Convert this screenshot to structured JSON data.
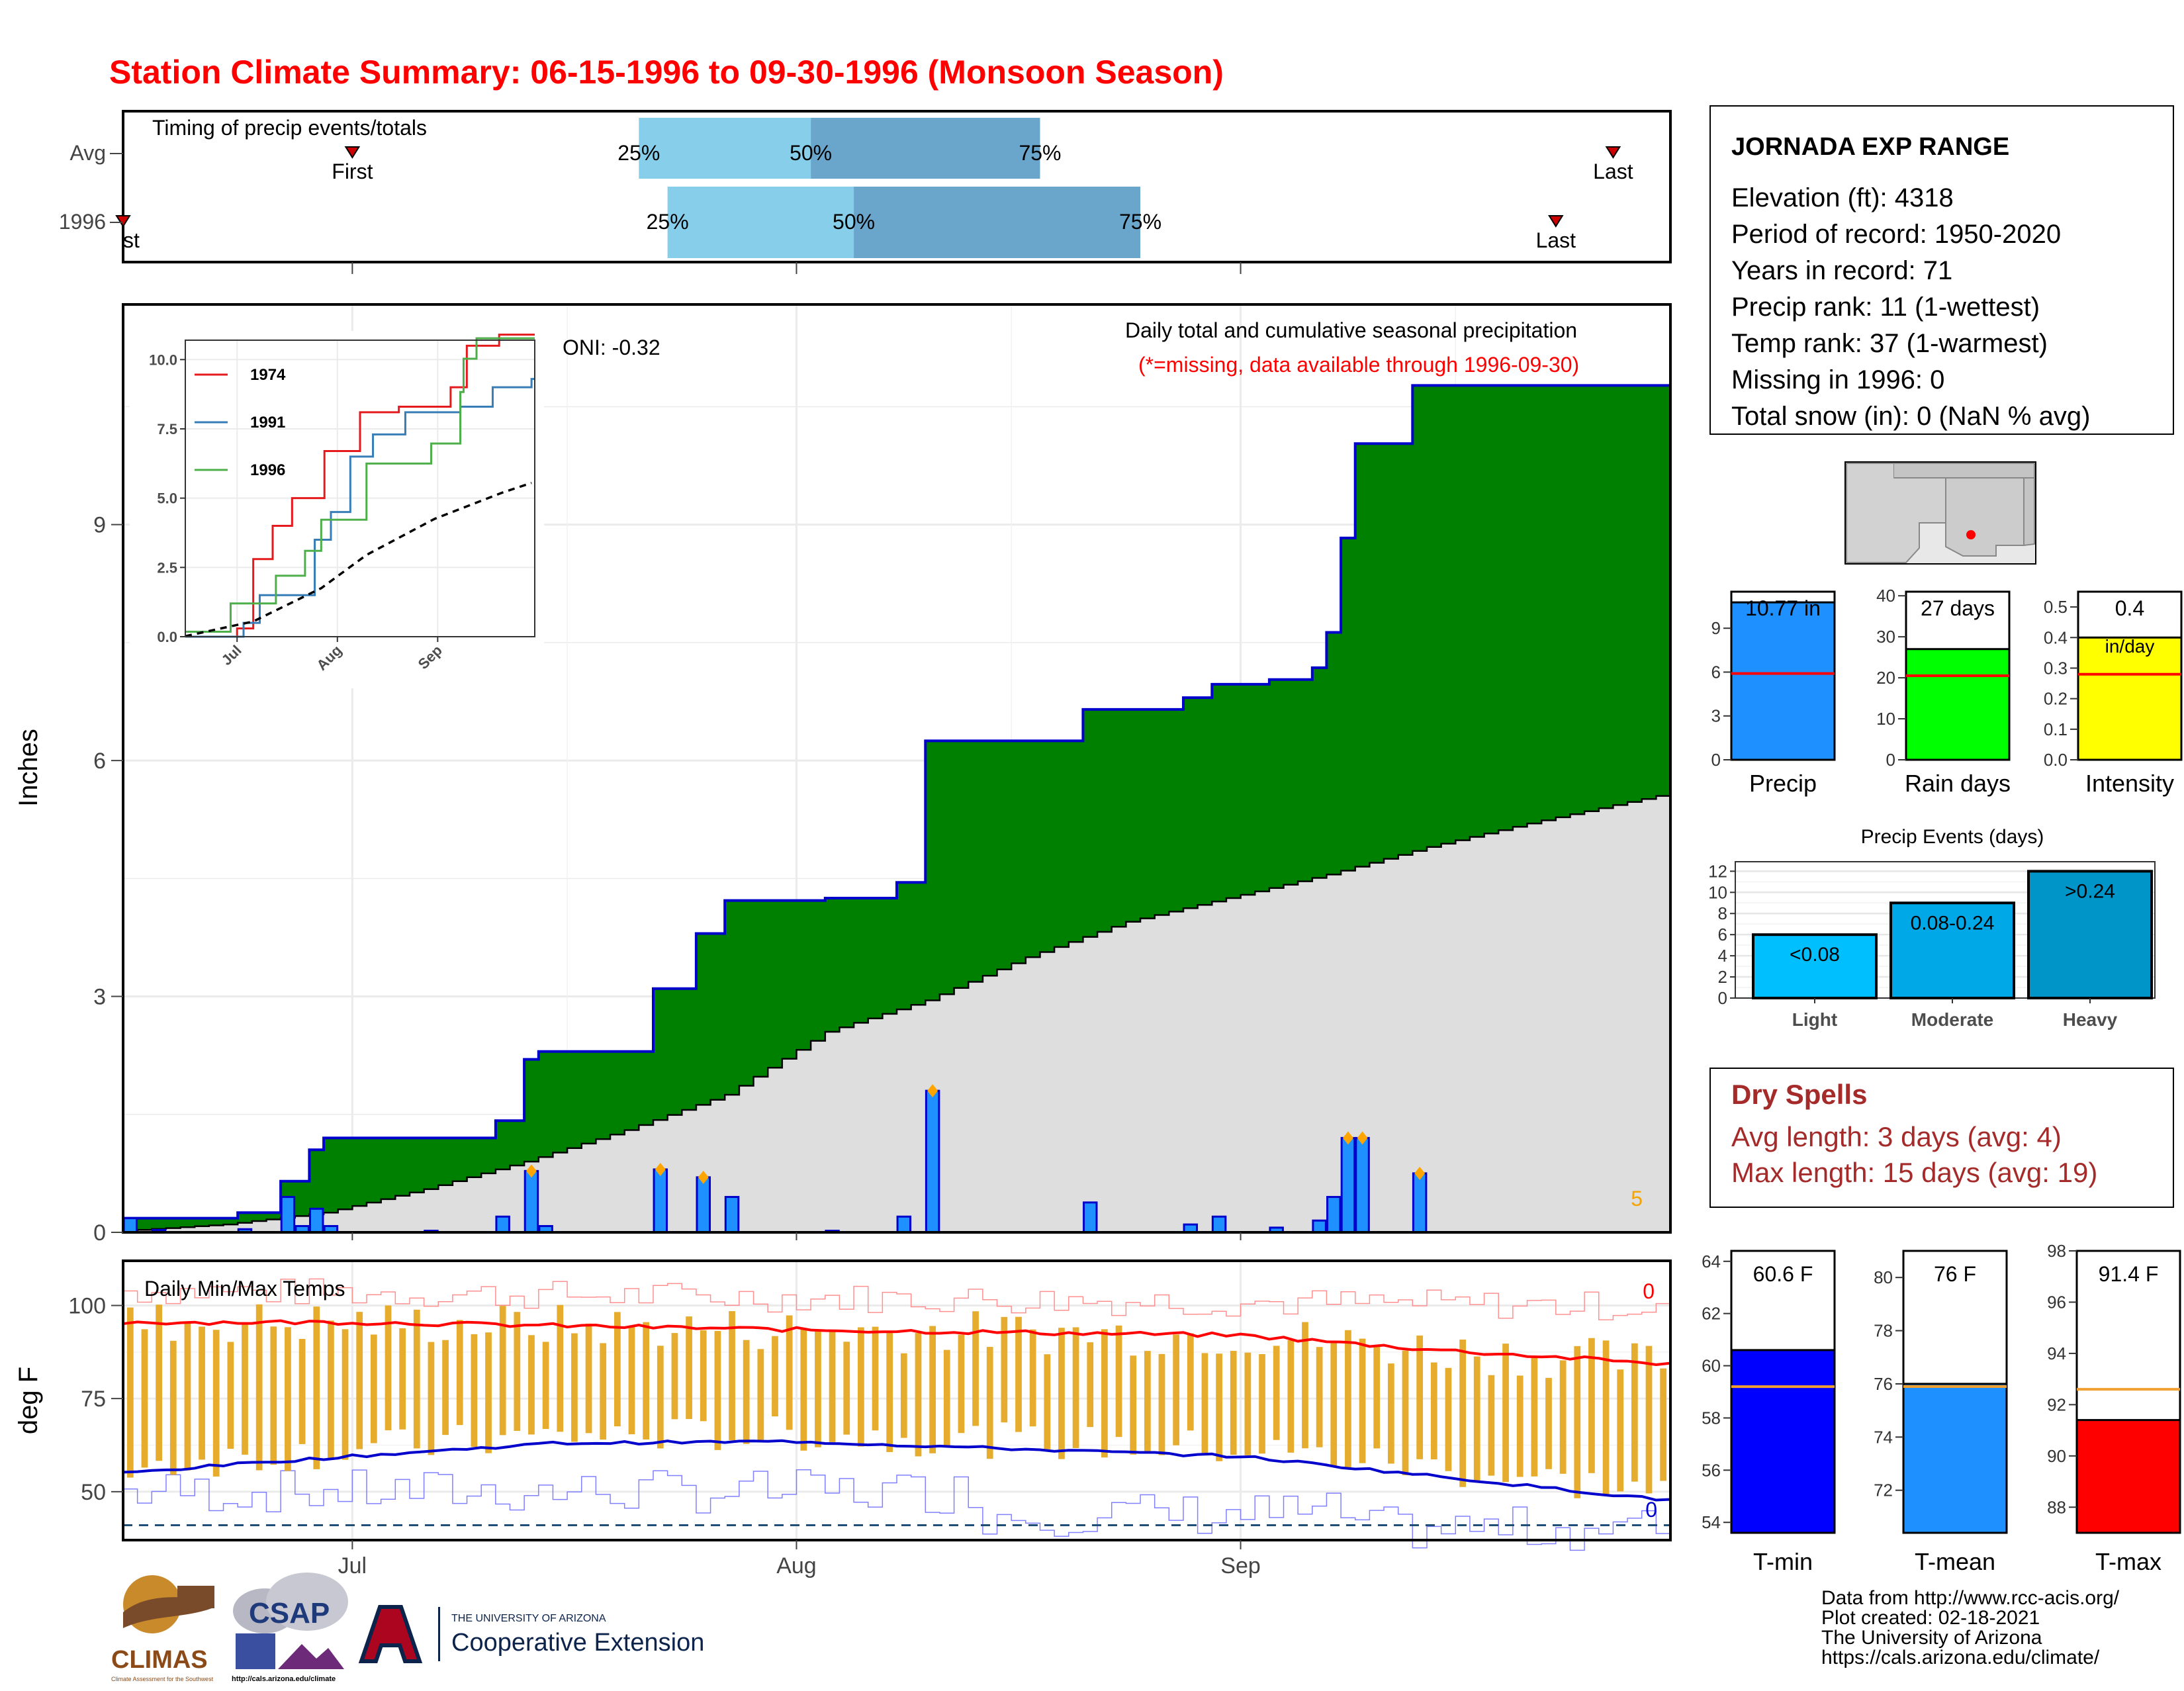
{
  "title": "Station Climate Summary: 06-15-1996 to 09-30-1996 (Monsoon Season)",
  "timing": {
    "label": "Timing of precip events/totals",
    "rows": [
      {
        "name": "Avg",
        "first_label": "First",
        "last_label": "Last",
        "first": "1996-07-01",
        "p25": "1996-07-21",
        "p50": "1996-08-02",
        "p75": "1996-08-18",
        "last": "1996-09-27"
      },
      {
        "name": "1996",
        "first_label": "First",
        "last_label": "Last",
        "first": "1996-06-15",
        "p25": "1996-07-23",
        "p50": "1996-08-05",
        "p75": "1996-08-25",
        "last": "1996-09-23"
      }
    ],
    "pct_labels": [
      "25%",
      "50%",
      "75%"
    ]
  },
  "station": {
    "name": "JORNADA EXP RANGE",
    "lines": [
      "Elevation (ft): 4318",
      "Period of record: 1950-2020",
      "Years in record: 71",
      "Precip rank: 11 (1-wettest)",
      "Temp rank: 37 (1-warmest)",
      "Missing in 1996: 0",
      "Total snow (in): 0 (NaN % avg)"
    ]
  },
  "precip_main": {
    "ylabel": "Inches",
    "oni": "ONI: -0.32",
    "caption": "Daily total and cumulative seasonal precipitation",
    "missing_note": "(*=missing, data available through 1996-09-30)",
    "count_label": "5",
    "x_ticks": [
      "Jul",
      "Aug",
      "Sep"
    ],
    "y_ticks": [
      0,
      3,
      6,
      9
    ]
  },
  "inset": {
    "y_ticks": [
      "0.0",
      "2.5",
      "5.0",
      "7.5",
      "10.0"
    ],
    "x_ticks": [
      "Jul",
      "Aug",
      "Sep"
    ],
    "legend": [
      {
        "name": "1974",
        "color": "#e41a1c"
      },
      {
        "name": "1991",
        "color": "#377eb8"
      },
      {
        "name": "1996",
        "color": "#4daf4a"
      }
    ]
  },
  "summary_bars": [
    {
      "label": "Precip",
      "value_label": "10.77 in",
      "value": 10.77,
      "avg": 5.9,
      "max": 11.5,
      "ticks": [
        "0",
        "3",
        "6",
        "9"
      ],
      "tick_vals": [
        0,
        3,
        6,
        9
      ],
      "color": "#1e90ff"
    },
    {
      "label": "Rain days",
      "value_label": "27 days",
      "value": 27,
      "avg": 20.5,
      "max": 41,
      "ticks": [
        "0",
        "10",
        "20",
        "30",
        "40"
      ],
      "tick_vals": [
        0,
        10,
        20,
        30,
        40
      ],
      "color": "#00ff00"
    },
    {
      "label": "Intensity",
      "value_label": "0.4",
      "sub_label": "in/day",
      "value": 0.4,
      "avg": 0.28,
      "max": 0.55,
      "ticks": [
        "0.0",
        "0.1",
        "0.2",
        "0.3",
        "0.4",
        "0.5"
      ],
      "tick_vals": [
        0,
        0.1,
        0.2,
        0.3,
        0.4,
        0.5
      ],
      "color": "#ffff00"
    }
  ],
  "events": {
    "title": "Precip Events (days)",
    "y_ticks": [
      "0",
      "2",
      "4",
      "6",
      "8",
      "10",
      "12"
    ],
    "bars": [
      {
        "category": "Light",
        "range_label": "<0.08",
        "value": 6,
        "color": "#00bfff"
      },
      {
        "category": "Moderate",
        "range_label": "0.08-0.24",
        "value": 9,
        "color": "#00a8e8"
      },
      {
        "category": "Heavy",
        "range_label": ">0.24",
        "value": 12,
        "color": "#0095c8"
      }
    ]
  },
  "dry_spells": {
    "title": "Dry Spells",
    "avg_line": "Avg length: 3 days (avg: 4)",
    "max_line": "Max length: 15 days (avg: 19)"
  },
  "temps": {
    "ylabel": "deg F",
    "panel_label": "Daily Min/Max Temps",
    "count_top": "0",
    "count_bottom": "0",
    "y_ticks": [
      50,
      75,
      100
    ]
  },
  "temp_bars": [
    {
      "label": "T-min",
      "value_label": "60.6 F",
      "value": 60.6,
      "avg": 59.2,
      "ymin": 53.6,
      "ymax": 64.4,
      "ticks": [
        54,
        56,
        58,
        60,
        62,
        64
      ],
      "color": "#0000ff"
    },
    {
      "label": "T-mean",
      "value_label": "76 F",
      "value": 76.0,
      "avg": 75.9,
      "ymin": 70.4,
      "ymax": 81.0,
      "ticks": [
        72,
        74,
        76,
        78,
        80
      ],
      "color": "#1e90ff"
    },
    {
      "label": "T-max",
      "value_label": "91.4 F",
      "value": 91.4,
      "avg": 92.6,
      "ymin": 87.0,
      "ymax": 98.0,
      "ticks": [
        88,
        90,
        92,
        94,
        96,
        98
      ],
      "color": "#ff0000"
    }
  ],
  "footer": {
    "lines": [
      "Data from http://www.rcc-acis.org/",
      "Plot created: 02-18-2021",
      "The University of Arizona",
      "https://cals.arizona.edu/climate/"
    ]
  },
  "logos": {
    "climas": "CLIMAS",
    "climas_sub": "Climate Assessment for the Southwest",
    "csap": "CSAP",
    "csap_url": "http://cals.arizona.edu/climate",
    "ua_top": "THE UNIVERSITY OF ARIZONA",
    "ua_bottom": "Cooperative Extension"
  },
  "chart_data": {
    "type": "area",
    "title": "Daily total and cumulative seasonal precipitation",
    "ylabel": "Inches",
    "ylim": [
      0,
      11.8
    ],
    "daily_precip": [
      {
        "date": "1996-06-15",
        "value": 0.18
      },
      {
        "date": "1996-06-17",
        "value": 0.03
      },
      {
        "date": "1996-06-23",
        "value": 0.04
      },
      {
        "date": "1996-06-26",
        "value": 0.45
      },
      {
        "date": "1996-06-27",
        "value": 0.08
      },
      {
        "date": "1996-06-28",
        "value": 0.3
      },
      {
        "date": "1996-06-29",
        "value": 0.08
      },
      {
        "date": "1996-07-06",
        "value": 0.02
      },
      {
        "date": "1996-07-11",
        "value": 0.2
      },
      {
        "date": "1996-07-13",
        "value": 0.78
      },
      {
        "date": "1996-07-14",
        "value": 0.08
      },
      {
        "date": "1996-07-22",
        "value": 0.8
      },
      {
        "date": "1996-07-25",
        "value": 0.7
      },
      {
        "date": "1996-07-27",
        "value": 0.45
      },
      {
        "date": "1996-08-03",
        "value": 0.02
      },
      {
        "date": "1996-08-08",
        "value": 0.2
      },
      {
        "date": "1996-08-10",
        "value": 1.8
      },
      {
        "date": "1996-08-21",
        "value": 0.38
      },
      {
        "date": "1996-08-28",
        "value": 0.1
      },
      {
        "date": "1996-08-30",
        "value": 0.2
      },
      {
        "date": "1996-09-03",
        "value": 0.06
      },
      {
        "date": "1996-09-06",
        "value": 0.15
      },
      {
        "date": "1996-09-07",
        "value": 0.45
      },
      {
        "date": "1996-09-08",
        "value": 1.2
      },
      {
        "date": "1996-09-09",
        "value": 1.2
      },
      {
        "date": "1996-09-13",
        "value": 0.75
      }
    ],
    "cumulative_1996": [
      [
        "1996-06-15",
        0.18
      ],
      [
        "1996-06-23",
        0.25
      ],
      [
        "1996-06-26",
        0.65
      ],
      [
        "1996-06-28",
        1.05
      ],
      [
        "1996-06-29",
        1.2
      ],
      [
        "1996-07-11",
        1.42
      ],
      [
        "1996-07-13",
        2.2
      ],
      [
        "1996-07-14",
        2.3
      ],
      [
        "1996-07-22",
        3.1
      ],
      [
        "1996-07-25",
        3.8
      ],
      [
        "1996-07-27",
        4.22
      ],
      [
        "1996-08-03",
        4.25
      ],
      [
        "1996-08-08",
        4.45
      ],
      [
        "1996-08-10",
        6.25
      ],
      [
        "1996-08-21",
        6.65
      ],
      [
        "1996-08-28",
        6.8
      ],
      [
        "1996-08-30",
        6.97
      ],
      [
        "1996-09-03",
        7.03
      ],
      [
        "1996-09-06",
        7.18
      ],
      [
        "1996-09-07",
        7.63
      ],
      [
        "1996-09-08",
        8.83
      ],
      [
        "1996-09-09",
        10.03
      ],
      [
        "1996-09-13",
        10.77
      ],
      [
        "1996-09-30",
        10.77
      ]
    ],
    "cumulative_avg": [
      [
        "1996-06-15",
        0.02
      ],
      [
        "1996-06-22",
        0.1
      ],
      [
        "1996-06-29",
        0.25
      ],
      [
        "1996-07-06",
        0.55
      ],
      [
        "1996-07-13",
        0.9
      ],
      [
        "1996-07-20",
        1.3
      ],
      [
        "1996-07-27",
        1.75
      ],
      [
        "1996-08-03",
        2.55
      ],
      [
        "1996-08-10",
        2.95
      ],
      [
        "1996-08-17",
        3.5
      ],
      [
        "1996-08-24",
        3.95
      ],
      [
        "1996-08-31",
        4.25
      ],
      [
        "1996-09-07",
        4.55
      ],
      [
        "1996-09-14",
        4.9
      ],
      [
        "1996-09-21",
        5.2
      ],
      [
        "1996-09-30",
        5.55
      ]
    ],
    "inset_series": [
      {
        "name": "1974",
        "points": [
          [
            "1996-06-15",
            0
          ],
          [
            "1996-07-01",
            0.3
          ],
          [
            "1996-07-06",
            2.8
          ],
          [
            "1996-07-12",
            4.0
          ],
          [
            "1996-07-18",
            5.0
          ],
          [
            "1996-07-28",
            6.7
          ],
          [
            "1996-08-08",
            8.1
          ],
          [
            "1996-08-20",
            8.3
          ],
          [
            "1996-09-05",
            9.0
          ],
          [
            "1996-09-10",
            10.5
          ],
          [
            "1996-09-20",
            11.1
          ],
          [
            "1996-09-30",
            11.1
          ]
        ]
      },
      {
        "name": "1991",
        "points": [
          [
            "1996-06-15",
            0
          ],
          [
            "1996-07-03",
            0.5
          ],
          [
            "1996-07-08",
            1.5
          ],
          [
            "1996-07-25",
            3.5
          ],
          [
            "1996-07-30",
            4.5
          ],
          [
            "1996-08-05",
            6.5
          ],
          [
            "1996-08-12",
            7.3
          ],
          [
            "1996-08-22",
            8.1
          ],
          [
            "1996-09-08",
            8.3
          ],
          [
            "1996-09-18",
            9.0
          ],
          [
            "1996-09-30",
            9.3
          ]
        ]
      },
      {
        "name": "1996",
        "points": [
          [
            "1996-06-15",
            0.18
          ],
          [
            "1996-06-29",
            1.2
          ],
          [
            "1996-07-13",
            2.2
          ],
          [
            "1996-07-22",
            3.1
          ],
          [
            "1996-07-27",
            4.22
          ],
          [
            "1996-08-10",
            6.25
          ],
          [
            "1996-08-30",
            6.97
          ],
          [
            "1996-09-08",
            8.83
          ],
          [
            "1996-09-09",
            10.03
          ],
          [
            "1996-09-13",
            10.77
          ],
          [
            "1996-09-30",
            10.77
          ]
        ]
      },
      {
        "name": "avg",
        "points": [
          [
            "1996-06-15",
            0.02
          ],
          [
            "1996-07-06",
            0.55
          ],
          [
            "1996-07-27",
            1.75
          ],
          [
            "1996-08-10",
            2.95
          ],
          [
            "1996-08-31",
            4.25
          ],
          [
            "1996-09-21",
            5.2
          ],
          [
            "1996-09-30",
            5.55
          ]
        ]
      }
    ],
    "temperature": {
      "ylabel": "deg F",
      "ylim": [
        37,
        112
      ],
      "avg_max": [
        [
          "1996-06-15",
          95.5
        ],
        [
          "1996-07-01",
          95.5
        ],
        [
          "1996-08-01",
          93.5
        ],
        [
          "1996-09-01",
          92.0
        ],
        [
          "1996-09-15",
          88.0
        ],
        [
          "1996-09-30",
          84.5
        ]
      ],
      "avg_min": [
        [
          "1996-06-15",
          55.0
        ],
        [
          "1996-06-25",
          58.0
        ],
        [
          "1996-07-15",
          63.0
        ],
        [
          "1996-08-01",
          63.5
        ],
        [
          "1996-08-20",
          61.0
        ],
        [
          "1996-09-01",
          59.5
        ],
        [
          "1996-09-15",
          54.0
        ],
        [
          "1996-09-30",
          48.0
        ]
      ],
      "record_max_approx": 104,
      "record_min_approx": 44,
      "freezing_line": 41
    }
  }
}
